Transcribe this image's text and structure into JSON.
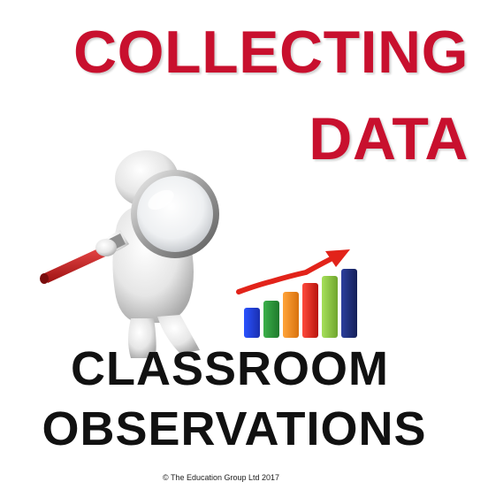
{
  "title": {
    "line1": "COLLECTING",
    "line2": "DATA"
  },
  "subtitle": {
    "line1": "CLASSROOM",
    "line2": "OBSERVATIONS"
  },
  "footer": {
    "copyright": "© The Education Group Ltd 2017"
  },
  "colors": {
    "title": "#c8102e",
    "subtitle": "#111111",
    "bar_blue": "#1f3fd1",
    "bar_green": "#2e8b3a",
    "bar_orange": "#f08a1c",
    "bar_red": "#e2231a",
    "bar_lime": "#8bc53f",
    "bar_navy": "#1b2a6b",
    "arrow": "#e2231a"
  },
  "icons": {
    "figure": "person-with-magnifying-glass-icon",
    "chart": "bar-chart-icon"
  }
}
